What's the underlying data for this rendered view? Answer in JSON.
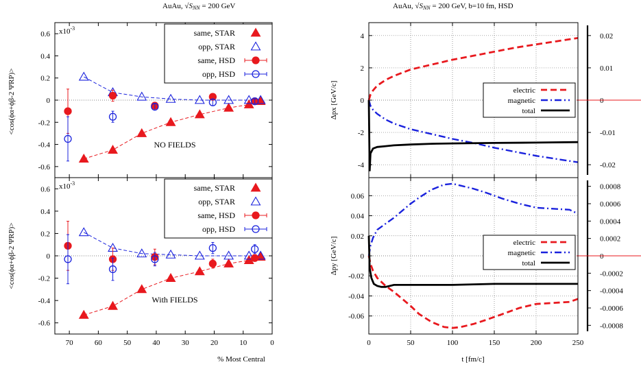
{
  "colors": {
    "star": "#e8191e",
    "opp": "#1a22dd",
    "electric": "#e8191e",
    "magnetic": "#1a22dd",
    "total": "#000000",
    "red_line": "#e8191e"
  },
  "left_title": "AuAu,",
  "left_title_tail": "= 200 GeV",
  "right_title": "AuAu,",
  "right_title_tail": "= 200 GeV,  b=10 fm, HSD",
  "left_ylabel": "<cos(ϕα+ϕβ-2 ΨRP)>",
  "left_xlabel": "% Most Central",
  "right_xlabel": "t [fm/c]",
  "chart_data": [
    {
      "type": "scatter",
      "panel": "top-left",
      "annotation": "NO FIELDS",
      "scale_label": "x10-3",
      "x_axis": {
        "label": "% Most Central",
        "range": [
          75,
          0
        ],
        "ticks": [
          "70",
          "60",
          "50",
          "40",
          "30",
          "20",
          "10",
          "0"
        ]
      },
      "y_axis": {
        "label": "<cos(ϕα+ϕβ-2 ΨRP)>",
        "range": [
          -0.7,
          0.7
        ],
        "ticks": [
          "0.6",
          "0.4",
          "0.2",
          "0",
          "-0.2",
          "-0.4",
          "-0.6"
        ]
      },
      "legend_position": "top-right",
      "series": [
        {
          "name": "same, STAR",
          "x": [
            65,
            55,
            45,
            35,
            25,
            15,
            8,
            4
          ],
          "y": [
            -0.53,
            -0.45,
            -0.3,
            -0.2,
            -0.13,
            -0.07,
            -0.04,
            -0.01
          ]
        },
        {
          "name": "opp, STAR",
          "x": [
            65,
            55,
            45,
            35,
            25,
            15,
            8,
            4
          ],
          "y": [
            0.21,
            0.07,
            0.03,
            0.01,
            0.0,
            0.0,
            0.0,
            0.0
          ]
        },
        {
          "name": "same, HSD",
          "x": [
            70.5,
            55,
            40.5,
            20.5,
            6
          ],
          "y": [
            -0.1,
            0.04,
            -0.05,
            0.03,
            -0.01
          ],
          "err": [
            0.2,
            0.05,
            0.03,
            0.02,
            0.02
          ]
        },
        {
          "name": "opp, HSD",
          "x": [
            70.5,
            55,
            40.5,
            20.5,
            6
          ],
          "y": [
            -0.35,
            -0.15,
            -0.06,
            -0.02,
            -0.01
          ],
          "err": [
            0.2,
            0.05,
            0.03,
            0.03,
            0.02
          ]
        }
      ]
    },
    {
      "type": "scatter",
      "panel": "bottom-left",
      "annotation": "With FIELDS",
      "scale_label": "x10-3",
      "x_axis": {
        "label": "% Most Central",
        "range": [
          75,
          0
        ],
        "ticks": [
          "70",
          "60",
          "50",
          "40",
          "30",
          "20",
          "10",
          "0"
        ]
      },
      "y_axis": {
        "label": "<cos(ϕα+ϕβ-2 ΨRP)>",
        "range": [
          -0.7,
          0.7
        ],
        "ticks": [
          "0.6",
          "0.4",
          "0.2",
          "0",
          "-0.2",
          "-0.4",
          "-0.6"
        ]
      },
      "legend_position": "top-right",
      "series": [
        {
          "name": "same, STAR",
          "x": [
            65,
            55,
            45,
            35,
            25,
            15,
            8,
            4
          ],
          "y": [
            -0.53,
            -0.45,
            -0.3,
            -0.2,
            -0.14,
            -0.07,
            -0.04,
            -0.01
          ]
        },
        {
          "name": "opp, STAR",
          "x": [
            65,
            55,
            45,
            35,
            25,
            15,
            8,
            4
          ],
          "y": [
            0.21,
            0.07,
            0.02,
            0.01,
            0.0,
            0.0,
            0.0,
            0.0
          ]
        },
        {
          "name": "same, HSD",
          "x": [
            70.5,
            55,
            40.5,
            20.5,
            6
          ],
          "y": [
            0.09,
            -0.03,
            -0.01,
            -0.07,
            -0.02
          ],
          "err": [
            0.22,
            0.1,
            0.07,
            0.04,
            0.03
          ]
        },
        {
          "name": "opp, HSD",
          "x": [
            70.5,
            55,
            40.5,
            20.5,
            6
          ],
          "y": [
            -0.03,
            -0.12,
            -0.03,
            0.07,
            0.06
          ],
          "err": [
            0.22,
            0.1,
            0.06,
            0.05,
            0.04
          ]
        }
      ]
    },
    {
      "type": "line",
      "panel": "top-right",
      "x_axis": {
        "label": "",
        "range": [
          0,
          250
        ],
        "ticks": []
      },
      "y_axis": {
        "label": "Δpx  [GeV/c]",
        "range": [
          -4.8,
          4.8
        ],
        "ticks": [
          "4",
          "2",
          "0",
          "-2",
          "-4"
        ]
      },
      "y2_axis": {
        "range": [
          -0.024,
          0.024
        ],
        "ticks": [
          "0.02",
          "0.01",
          "0",
          "-0.01",
          "-0.02"
        ]
      },
      "legend_position": "center-right",
      "series": [
        {
          "name": "electric",
          "x": [
            0,
            2,
            5,
            10,
            20,
            30,
            50,
            75,
            100,
            125,
            150,
            175,
            200,
            225,
            250
          ],
          "y": [
            0,
            0.35,
            0.6,
            0.9,
            1.25,
            1.5,
            1.9,
            2.2,
            2.5,
            2.75,
            3.0,
            3.25,
            3.45,
            3.65,
            3.85
          ]
        },
        {
          "name": "magnetic",
          "x": [
            0,
            2,
            5,
            10,
            20,
            30,
            50,
            75,
            100,
            125,
            150,
            175,
            200,
            225,
            250
          ],
          "y": [
            0,
            -0.35,
            -0.6,
            -0.85,
            -1.2,
            -1.45,
            -1.8,
            -2.1,
            -2.4,
            -2.65,
            -2.95,
            -3.2,
            -3.45,
            -3.65,
            -3.85
          ]
        },
        {
          "name": "total",
          "x": [
            0,
            1,
            2,
            5,
            10,
            20,
            30,
            50,
            75,
            100,
            150,
            200,
            250
          ],
          "y": [
            0,
            -4.4,
            -3.3,
            -3.0,
            -2.9,
            -2.85,
            -2.8,
            -2.75,
            -2.7,
            -2.68,
            -2.65,
            -2.63,
            -2.6
          ]
        }
      ]
    },
    {
      "type": "line",
      "panel": "bottom-right",
      "x_axis": {
        "label": "t [fm/c]",
        "range": [
          0,
          250
        ],
        "ticks": [
          "0",
          "50",
          "100",
          "150",
          "200",
          "250"
        ]
      },
      "y_axis": {
        "label": "Δpy  [GeV/c]",
        "range": [
          -0.078,
          0.078
        ],
        "ticks": [
          "0.06",
          "0.04",
          "0.02",
          "0",
          "-0.02",
          "-0.04",
          "-0.06"
        ]
      },
      "y2_axis": {
        "range": [
          -0.0009,
          0.0009
        ],
        "ticks": [
          "0.0008",
          "0.0006",
          "0.0004",
          "0.0002",
          "0",
          "-0.0002",
          "-0.0004",
          "-0.0006",
          "-0.0008"
        ]
      },
      "legend_position": "center-right",
      "series": [
        {
          "name": "electric",
          "x": [
            0,
            2,
            5,
            10,
            20,
            30,
            40,
            50,
            60,
            75,
            90,
            100,
            110,
            125,
            140,
            160,
            180,
            200,
            220,
            240,
            250
          ],
          "y": [
            0,
            -0.008,
            -0.015,
            -0.022,
            -0.03,
            -0.036,
            -0.043,
            -0.05,
            -0.058,
            -0.066,
            -0.071,
            -0.072,
            -0.071,
            -0.068,
            -0.064,
            -0.058,
            -0.052,
            -0.048,
            -0.047,
            -0.046,
            -0.043
          ]
        },
        {
          "name": "magnetic",
          "x": [
            0,
            2,
            5,
            10,
            20,
            30,
            40,
            50,
            60,
            75,
            90,
            100,
            110,
            125,
            140,
            160,
            180,
            200,
            220,
            240,
            250
          ],
          "y": [
            0,
            0.01,
            0.018,
            0.026,
            0.032,
            0.038,
            0.045,
            0.052,
            0.058,
            0.066,
            0.071,
            0.072,
            0.07,
            0.067,
            0.063,
            0.057,
            0.052,
            0.048,
            0.047,
            0.046,
            0.042
          ]
        },
        {
          "name": "total",
          "x": [
            0,
            1,
            3,
            6,
            10,
            15,
            20,
            30,
            40,
            60,
            80,
            100,
            150,
            200,
            250
          ],
          "y": [
            0.02,
            -0.012,
            -0.022,
            -0.028,
            -0.03,
            -0.031,
            -0.031,
            -0.029,
            -0.029,
            -0.029,
            -0.029,
            -0.029,
            -0.028,
            -0.028,
            -0.028
          ]
        }
      ]
    }
  ]
}
